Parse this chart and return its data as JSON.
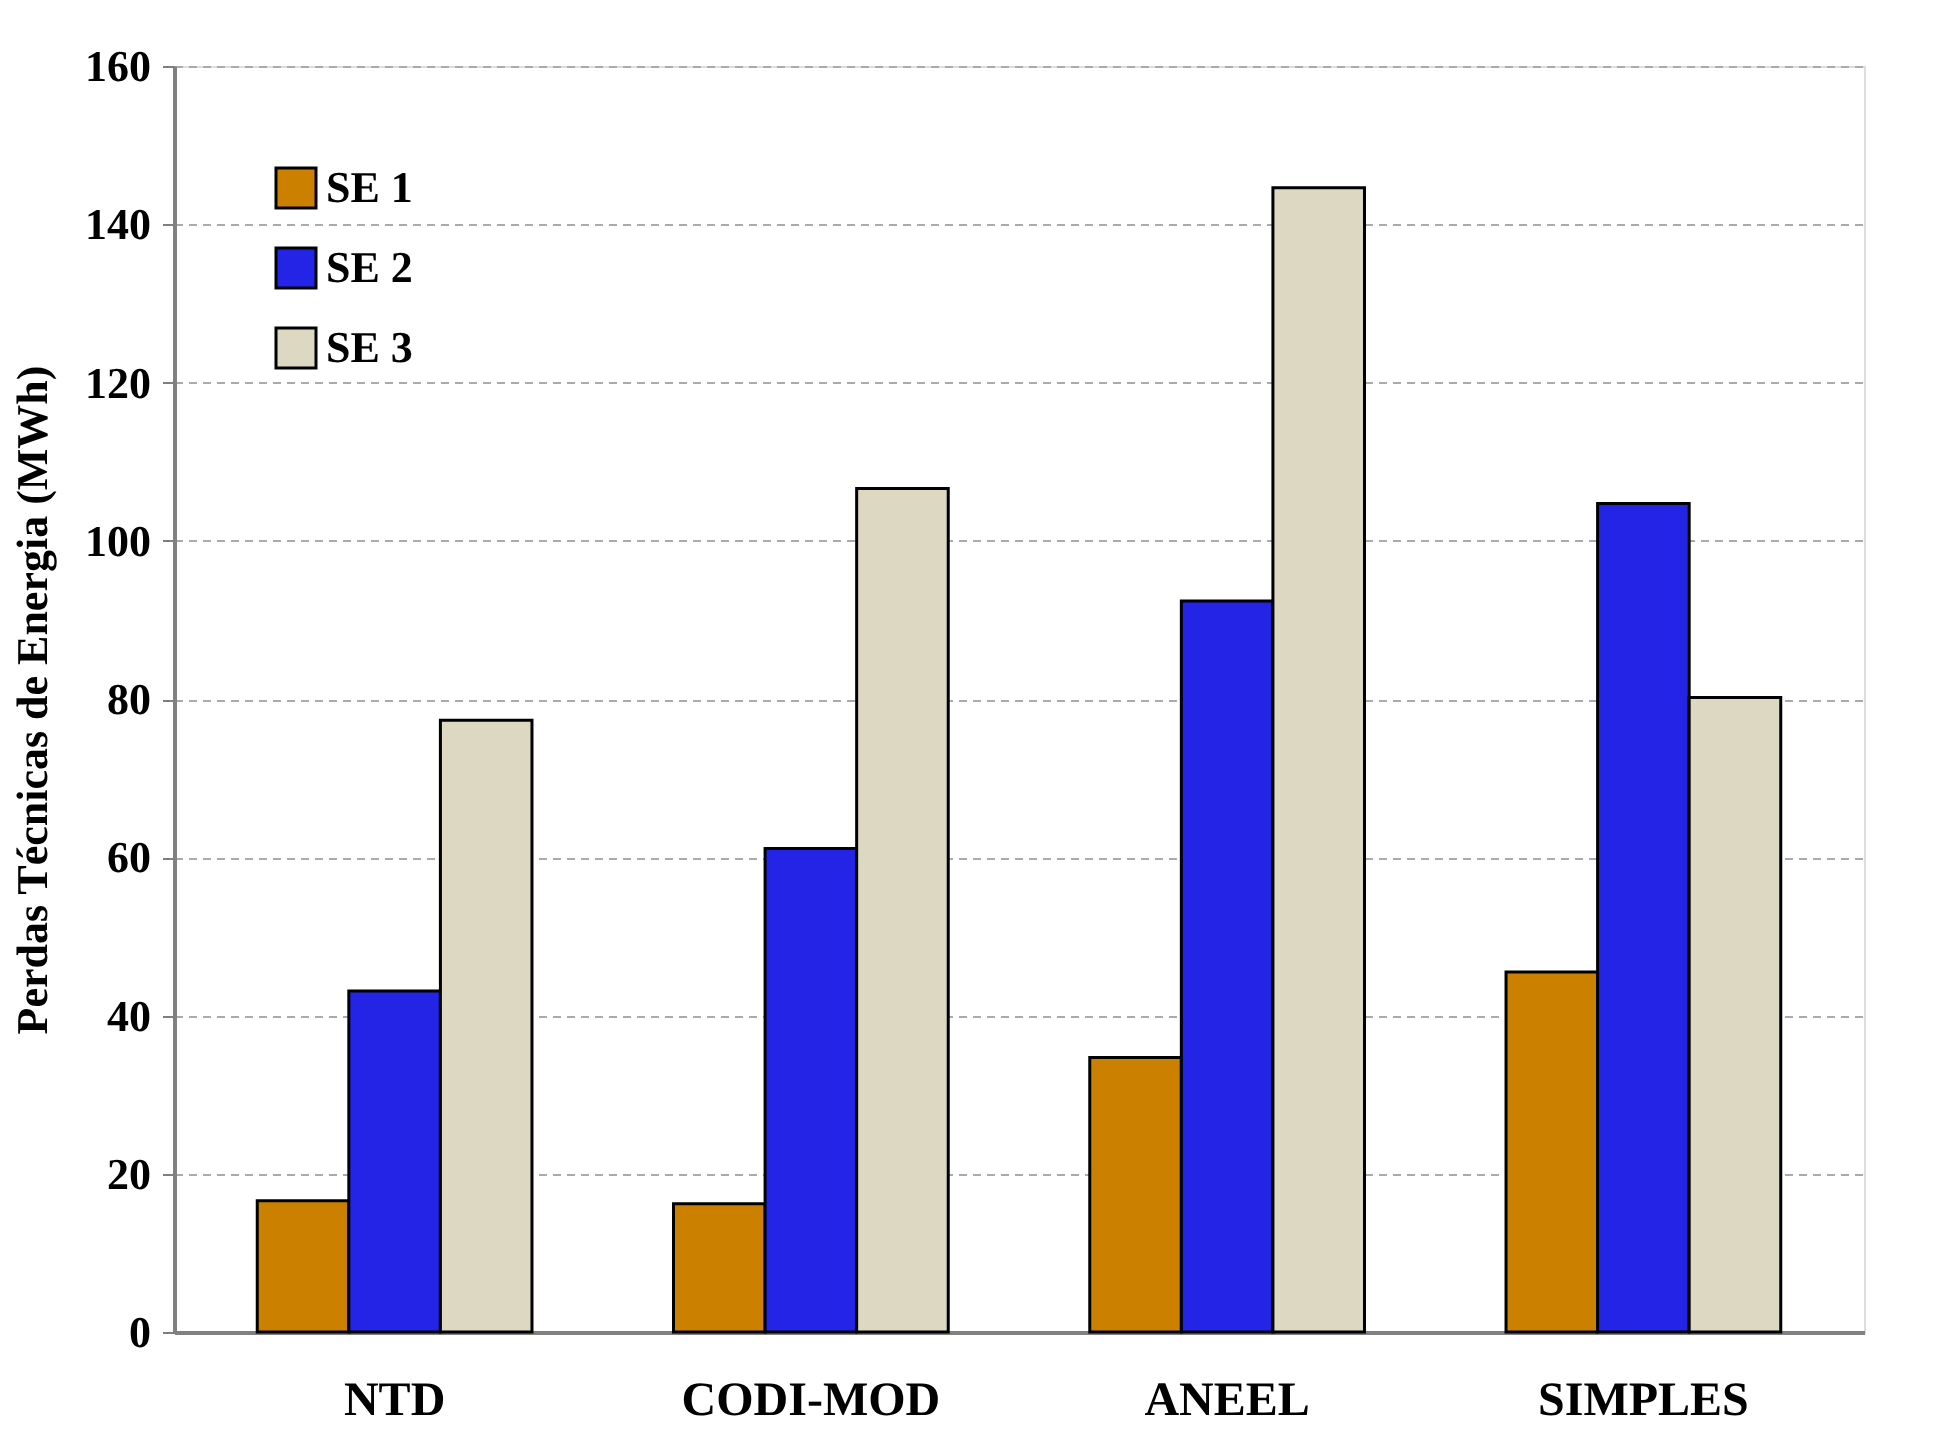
{
  "chart_data": {
    "type": "bar",
    "ylabel": "Perdas Técnicas de Energia (MWh)",
    "categories": [
      "NTD",
      "CODI-MOD",
      "ANEEL",
      "SIMPLES"
    ],
    "series": [
      {
        "name": "SE 1",
        "color": "#cc8000",
        "values": [
          16.6,
          16.2,
          34.7,
          45.5
        ]
      },
      {
        "name": "SE 2",
        "color": "#2424e6",
        "values": [
          43.1,
          61.1,
          92.4,
          104.7
        ]
      },
      {
        "name": "SE 3",
        "color": "#ddd8c2",
        "values": [
          77.3,
          106.6,
          144.6,
          80.2
        ]
      }
    ],
    "ylim": [
      0,
      160
    ],
    "yticks": [
      0,
      20,
      40,
      60,
      80,
      100,
      120,
      140,
      160
    ],
    "grid": "y",
    "legend": "top left"
  }
}
